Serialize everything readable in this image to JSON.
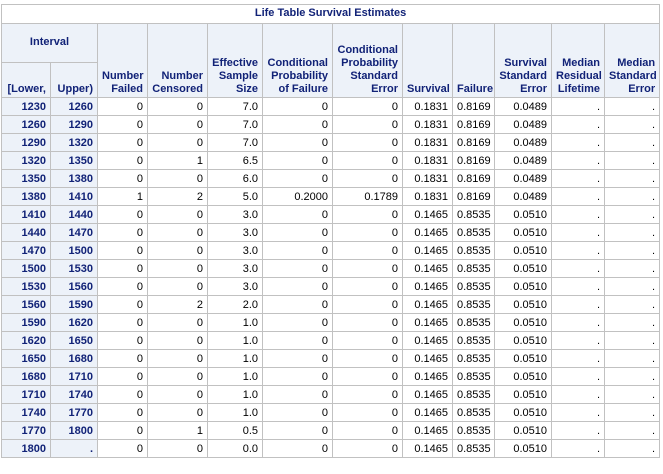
{
  "title": "Life Table Survival Estimates",
  "headers": {
    "interval": "Interval",
    "lower": "[Lower,",
    "upper": "Upper)",
    "number_failed": "Number Failed",
    "number_censored": "Number Censored",
    "effective_sample_size": "Effective Sample Size",
    "conditional_probability_of_failure": "Conditional Probability of Failure",
    "conditional_probability_standard_error": "Conditional Probability Standard Error",
    "survival": "Survival",
    "failure": "Failure",
    "survival_standard_error": "Survival Standard Error",
    "median_residual_lifetime": "Median Residual Lifetime",
    "median_standard_error": "Median Standard Error"
  },
  "rows": [
    [
      "1230",
      "1260",
      "0",
      "0",
      "7.0",
      "0",
      "0",
      "0.1831",
      "0.8169",
      "0.0489",
      ".",
      "."
    ],
    [
      "1260",
      "1290",
      "0",
      "0",
      "7.0",
      "0",
      "0",
      "0.1831",
      "0.8169",
      "0.0489",
      ".",
      "."
    ],
    [
      "1290",
      "1320",
      "0",
      "0",
      "7.0",
      "0",
      "0",
      "0.1831",
      "0.8169",
      "0.0489",
      ".",
      "."
    ],
    [
      "1320",
      "1350",
      "0",
      "1",
      "6.5",
      "0",
      "0",
      "0.1831",
      "0.8169",
      "0.0489",
      ".",
      "."
    ],
    [
      "1350",
      "1380",
      "0",
      "0",
      "6.0",
      "0",
      "0",
      "0.1831",
      "0.8169",
      "0.0489",
      ".",
      "."
    ],
    [
      "1380",
      "1410",
      "1",
      "2",
      "5.0",
      "0.2000",
      "0.1789",
      "0.1831",
      "0.8169",
      "0.0489",
      ".",
      "."
    ],
    [
      "1410",
      "1440",
      "0",
      "0",
      "3.0",
      "0",
      "0",
      "0.1465",
      "0.8535",
      "0.0510",
      ".",
      "."
    ],
    [
      "1440",
      "1470",
      "0",
      "0",
      "3.0",
      "0",
      "0",
      "0.1465",
      "0.8535",
      "0.0510",
      ".",
      "."
    ],
    [
      "1470",
      "1500",
      "0",
      "0",
      "3.0",
      "0",
      "0",
      "0.1465",
      "0.8535",
      "0.0510",
      ".",
      "."
    ],
    [
      "1500",
      "1530",
      "0",
      "0",
      "3.0",
      "0",
      "0",
      "0.1465",
      "0.8535",
      "0.0510",
      ".",
      "."
    ],
    [
      "1530",
      "1560",
      "0",
      "0",
      "3.0",
      "0",
      "0",
      "0.1465",
      "0.8535",
      "0.0510",
      ".",
      "."
    ],
    [
      "1560",
      "1590",
      "0",
      "2",
      "2.0",
      "0",
      "0",
      "0.1465",
      "0.8535",
      "0.0510",
      ".",
      "."
    ],
    [
      "1590",
      "1620",
      "0",
      "0",
      "1.0",
      "0",
      "0",
      "0.1465",
      "0.8535",
      "0.0510",
      ".",
      "."
    ],
    [
      "1620",
      "1650",
      "0",
      "0",
      "1.0",
      "0",
      "0",
      "0.1465",
      "0.8535",
      "0.0510",
      ".",
      "."
    ],
    [
      "1650",
      "1680",
      "0",
      "0",
      "1.0",
      "0",
      "0",
      "0.1465",
      "0.8535",
      "0.0510",
      ".",
      "."
    ],
    [
      "1680",
      "1710",
      "0",
      "0",
      "1.0",
      "0",
      "0",
      "0.1465",
      "0.8535",
      "0.0510",
      ".",
      "."
    ],
    [
      "1710",
      "1740",
      "0",
      "0",
      "1.0",
      "0",
      "0",
      "0.1465",
      "0.8535",
      "0.0510",
      ".",
      "."
    ],
    [
      "1740",
      "1770",
      "0",
      "0",
      "1.0",
      "0",
      "0",
      "0.1465",
      "0.8535",
      "0.0510",
      ".",
      "."
    ],
    [
      "1770",
      "1800",
      "0",
      "1",
      "0.5",
      "0",
      "0",
      "0.1465",
      "0.8535",
      "0.0510",
      ".",
      "."
    ],
    [
      "1800",
      ".",
      "0",
      "0",
      "0.0",
      "0",
      "0",
      "0.1465",
      "0.8535",
      "0.0510",
      ".",
      "."
    ]
  ]
}
